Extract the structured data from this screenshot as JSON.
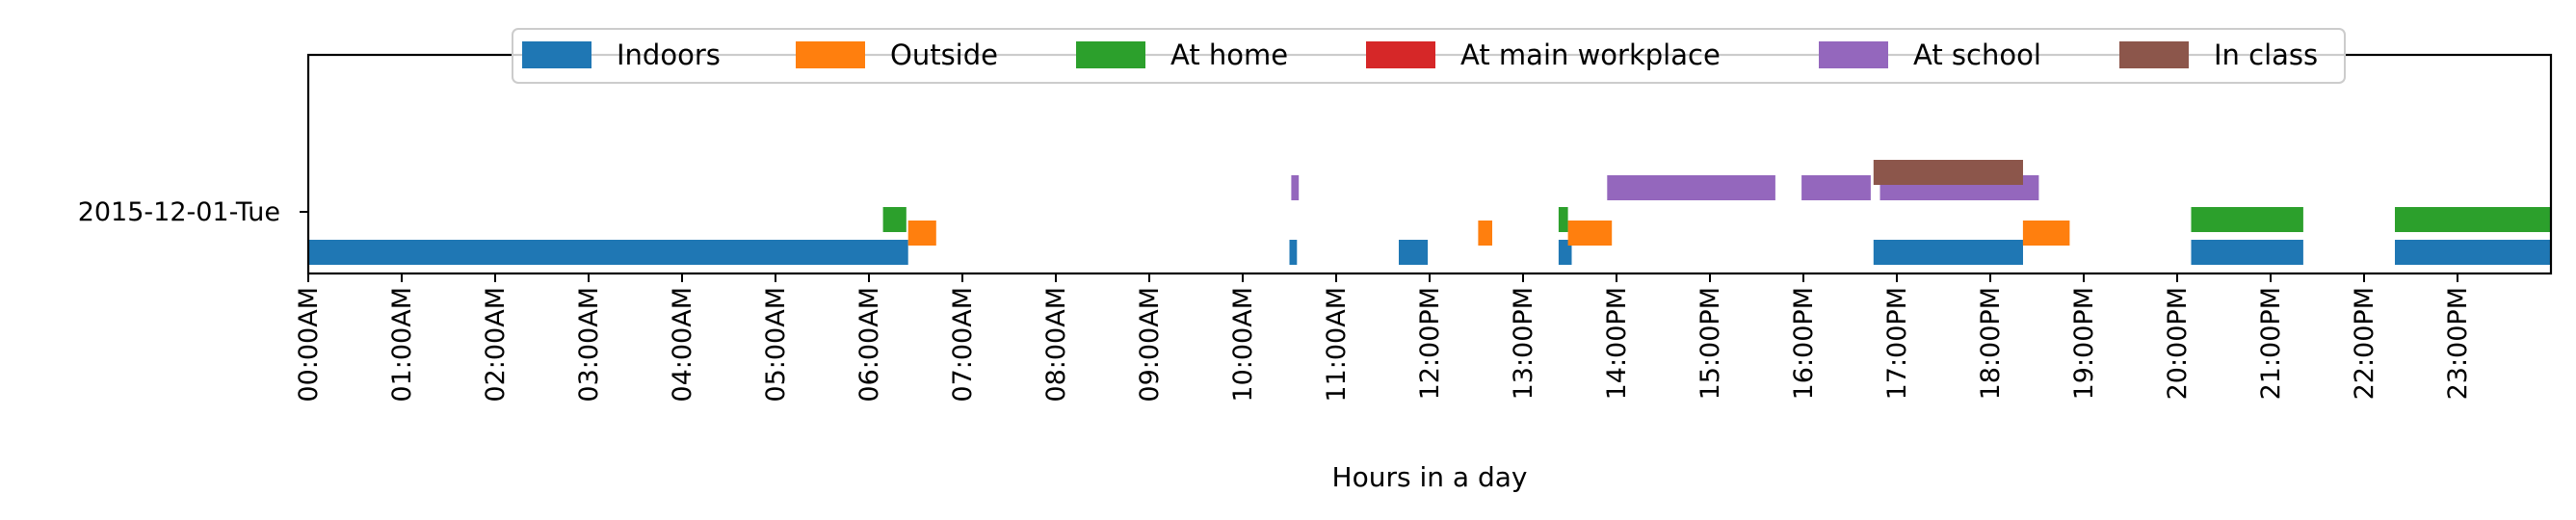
{
  "chart_data": {
    "type": "timeline",
    "xlabel": "Hours in a day",
    "ylabel": "",
    "xlim_hours": [
      0,
      24
    ],
    "day_label": "2015-12-01-Tue",
    "x_tick_labels": [
      "00:00AM",
      "01:00AM",
      "02:00AM",
      "03:00AM",
      "04:00AM",
      "05:00AM",
      "06:00AM",
      "07:00AM",
      "08:00AM",
      "09:00AM",
      "10:00AM",
      "11:00AM",
      "12:00PM",
      "13:00PM",
      "14:00PM",
      "15:00PM",
      "16:00PM",
      "17:00PM",
      "18:00PM",
      "19:00PM",
      "20:00PM",
      "21:00PM",
      "22:00PM",
      "23:00PM"
    ],
    "legend_position": "top-center",
    "series": [
      {
        "name": "Indoors",
        "color": "#1f77b4",
        "intervals": [
          [
            0.0,
            6.42
          ],
          [
            10.5,
            10.58
          ],
          [
            11.67,
            11.98
          ],
          [
            13.38,
            13.52
          ],
          [
            16.75,
            18.35
          ],
          [
            20.15,
            21.35
          ],
          [
            22.33,
            24.0
          ]
        ]
      },
      {
        "name": "Outside",
        "color": "#ff7f0e",
        "intervals": [
          [
            6.42,
            6.72
          ],
          [
            12.52,
            12.67
          ],
          [
            13.48,
            13.95
          ],
          [
            18.35,
            18.85
          ]
        ]
      },
      {
        "name": "At home",
        "color": "#2ca02c",
        "intervals": [
          [
            6.15,
            6.4
          ],
          [
            13.38,
            13.48
          ],
          [
            20.15,
            21.35
          ],
          [
            22.33,
            24.0
          ]
        ]
      },
      {
        "name": "At main workplace",
        "color": "#d62728",
        "intervals": []
      },
      {
        "name": "At school",
        "color": "#9467bd",
        "intervals": [
          [
            10.52,
            10.6
          ],
          [
            13.9,
            15.7
          ],
          [
            15.98,
            16.72
          ],
          [
            16.82,
            18.52
          ]
        ]
      },
      {
        "name": "In class",
        "color": "#8c564b",
        "intervals": [
          [
            16.75,
            18.35
          ]
        ]
      }
    ]
  }
}
